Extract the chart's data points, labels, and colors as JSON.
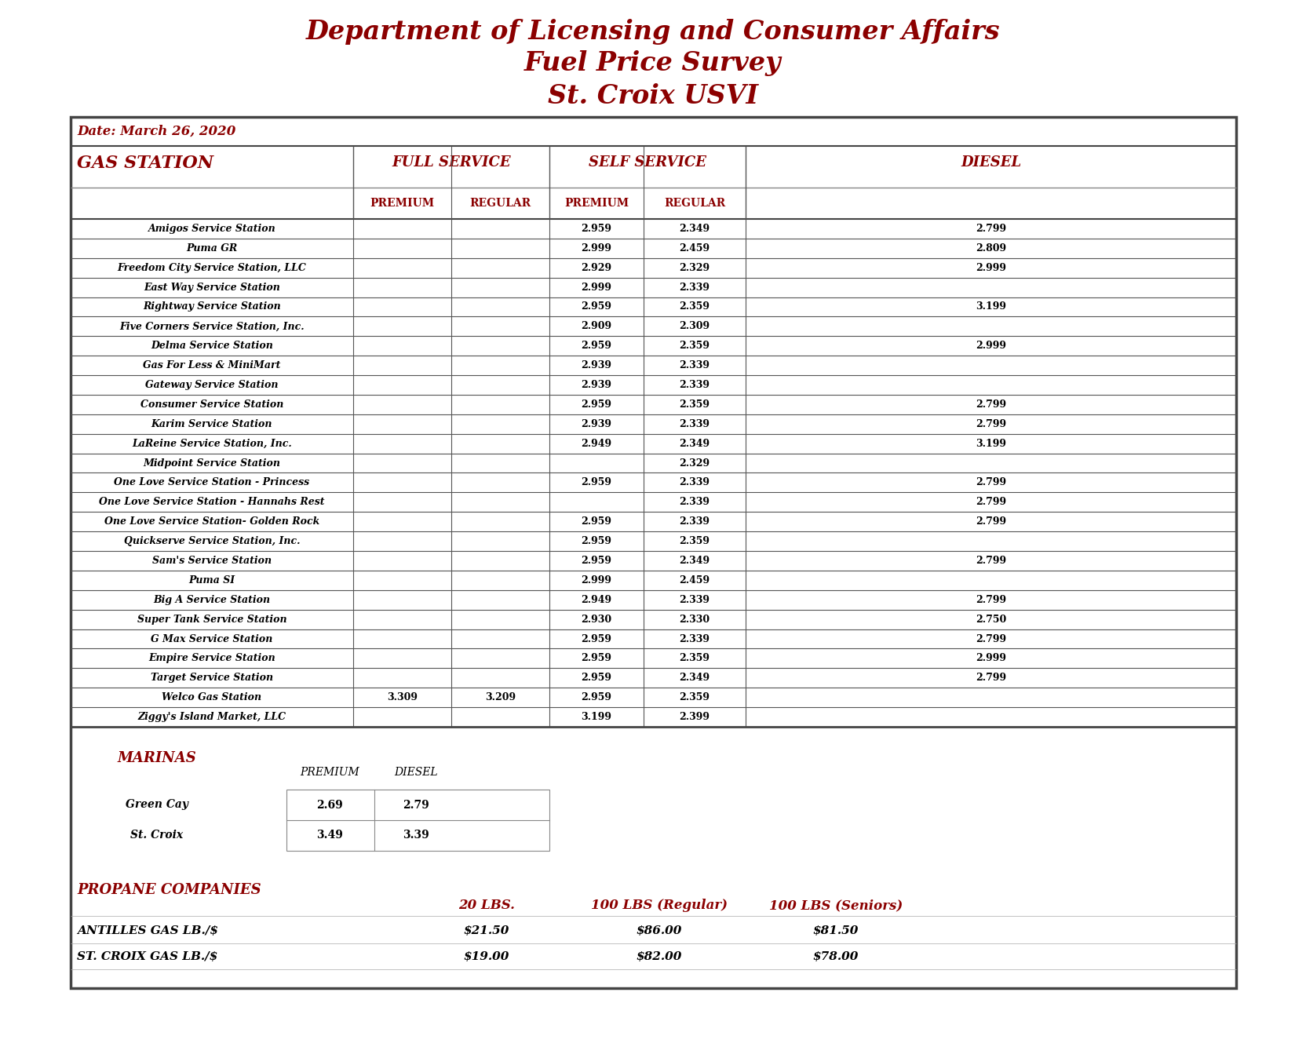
{
  "title_line1": "Department of Licensing and Consumer Affairs",
  "title_line2": "Fuel Price Survey",
  "title_line3": "St. Croix USVI",
  "date_text": "Date: March 26, 2020",
  "gas_stations": [
    {
      "name": "Amigos Service Station",
      "fs_prem": "",
      "fs_reg": "",
      "ss_prem": "2.959",
      "ss_reg": "2.349",
      "diesel": "2.799"
    },
    {
      "name": "Puma GR",
      "fs_prem": "",
      "fs_reg": "",
      "ss_prem": "2.999",
      "ss_reg": "2.459",
      "diesel": "2.809"
    },
    {
      "name": "Freedom City Service Station, LLC",
      "fs_prem": "",
      "fs_reg": "",
      "ss_prem": "2.929",
      "ss_reg": "2.329",
      "diesel": "2.999"
    },
    {
      "name": "East Way Service Station",
      "fs_prem": "",
      "fs_reg": "",
      "ss_prem": "2.999",
      "ss_reg": "2.339",
      "diesel": ""
    },
    {
      "name": "Rightway Service Station",
      "fs_prem": "",
      "fs_reg": "",
      "ss_prem": "2.959",
      "ss_reg": "2.359",
      "diesel": "3.199"
    },
    {
      "name": "Five Corners Service Station, Inc.",
      "fs_prem": "",
      "fs_reg": "",
      "ss_prem": "2.909",
      "ss_reg": "2.309",
      "diesel": ""
    },
    {
      "name": "Delma Service Station",
      "fs_prem": "",
      "fs_reg": "",
      "ss_prem": "2.959",
      "ss_reg": "2.359",
      "diesel": "2.999"
    },
    {
      "name": "Gas For Less & MiniMart",
      "fs_prem": "",
      "fs_reg": "",
      "ss_prem": "2.939",
      "ss_reg": "2.339",
      "diesel": ""
    },
    {
      "name": "Gateway Service Station",
      "fs_prem": "",
      "fs_reg": "",
      "ss_prem": "2.939",
      "ss_reg": "2.339",
      "diesel": ""
    },
    {
      "name": "Consumer Service Station",
      "fs_prem": "",
      "fs_reg": "",
      "ss_prem": "2.959",
      "ss_reg": "2.359",
      "diesel": "2.799"
    },
    {
      "name": "Karim Service Station",
      "fs_prem": "",
      "fs_reg": "",
      "ss_prem": "2.939",
      "ss_reg": "2.339",
      "diesel": "2.799"
    },
    {
      "name": "LaReine Service Station, Inc.",
      "fs_prem": "",
      "fs_reg": "",
      "ss_prem": "2.949",
      "ss_reg": "2.349",
      "diesel": "3.199"
    },
    {
      "name": "Midpoint Service Station",
      "fs_prem": "",
      "fs_reg": "",
      "ss_prem": "",
      "ss_reg": "2.329",
      "diesel": ""
    },
    {
      "name": "One Love Service Station - Princess",
      "fs_prem": "",
      "fs_reg": "",
      "ss_prem": "2.959",
      "ss_reg": "2.339",
      "diesel": "2.799"
    },
    {
      "name": "One Love Service Station - Hannahs Rest",
      "fs_prem": "",
      "fs_reg": "",
      "ss_prem": "",
      "ss_reg": "2.339",
      "diesel": "2.799"
    },
    {
      "name": "One Love Service Station- Golden Rock",
      "fs_prem": "",
      "fs_reg": "",
      "ss_prem": "2.959",
      "ss_reg": "2.339",
      "diesel": "2.799"
    },
    {
      "name": "Quickserve Service Station, Inc.",
      "fs_prem": "",
      "fs_reg": "",
      "ss_prem": "2.959",
      "ss_reg": "2.359",
      "diesel": ""
    },
    {
      "name": "Sam's Service Station",
      "fs_prem": "",
      "fs_reg": "",
      "ss_prem": "2.959",
      "ss_reg": "2.349",
      "diesel": "2.799"
    },
    {
      "name": "Puma SI",
      "fs_prem": "",
      "fs_reg": "",
      "ss_prem": "2.999",
      "ss_reg": "2.459",
      "diesel": ""
    },
    {
      "name": "Big A Service Station",
      "fs_prem": "",
      "fs_reg": "",
      "ss_prem": "2.949",
      "ss_reg": "2.339",
      "diesel": "2.799"
    },
    {
      "name": "Super Tank Service Station",
      "fs_prem": "",
      "fs_reg": "",
      "ss_prem": "2.930",
      "ss_reg": "2.330",
      "diesel": "2.750"
    },
    {
      "name": "G Max Service Station",
      "fs_prem": "",
      "fs_reg": "",
      "ss_prem": "2.959",
      "ss_reg": "2.339",
      "diesel": "2.799"
    },
    {
      "name": "Empire Service Station",
      "fs_prem": "",
      "fs_reg": "",
      "ss_prem": "2.959",
      "ss_reg": "2.359",
      "diesel": "2.999"
    },
    {
      "name": "Target Service Station",
      "fs_prem": "",
      "fs_reg": "",
      "ss_prem": "2.959",
      "ss_reg": "2.349",
      "diesel": "2.799"
    },
    {
      "name": "Welco Gas Station",
      "fs_prem": "3.309",
      "fs_reg": "3.209",
      "ss_prem": "2.959",
      "ss_reg": "2.359",
      "diesel": ""
    },
    {
      "name": "Ziggy's Island Market, LLC",
      "fs_prem": "",
      "fs_reg": "",
      "ss_prem": "3.199",
      "ss_reg": "2.399",
      "diesel": ""
    }
  ],
  "marinas": [
    {
      "name": "Green Cay",
      "premium": "2.69",
      "diesel": "2.79"
    },
    {
      "name": "St. Croix",
      "premium": "3.49",
      "diesel": "3.39"
    }
  ],
  "propane_companies": [
    {
      "name": "ANTILLES GAS LB./$",
      "lbs20": "$21.50",
      "lbs100_reg": "$86.00",
      "lbs100_sen": "$81.50"
    },
    {
      "name": "ST. CROIX GAS LB./$",
      "lbs20": "$19.00",
      "lbs100_reg": "$82.00",
      "lbs100_sen": "$78.00"
    }
  ],
  "dark_red": "#8B0000",
  "black": "#000000",
  "table_border": "#444444",
  "row_line": "#555555"
}
